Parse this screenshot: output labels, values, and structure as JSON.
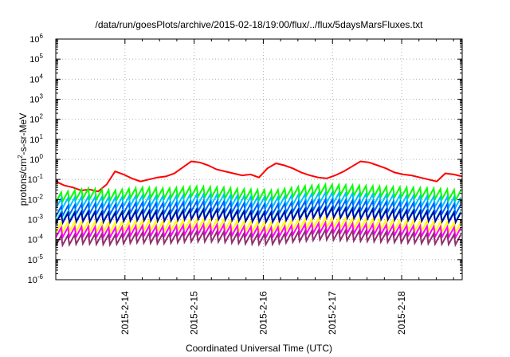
{
  "chart_data": {
    "type": "line",
    "title": "/data/run/goesPlots/archive/2015-02-18/19:00/flux/../flux/5daysMarsFluxes.txt",
    "xlabel": "Coordinated Universal Time (UTC)",
    "ylabel": {
      "base": "protons/cm",
      "sup": "2",
      "rest": "-s-sr-MeV"
    },
    "y_scale": "log",
    "ylim_exp": [
      -6,
      6
    ],
    "xlim": [
      "2015-02-13 00:00",
      "2015-02-18 21:00"
    ],
    "x_ticks": [
      "2015-2-14",
      "2015-2-15",
      "2015-2-16",
      "2015-2-17",
      "2015-2-18"
    ],
    "y_ticks": [
      {
        "base": "10",
        "exp": "-6"
      },
      {
        "base": "10",
        "exp": "-5"
      },
      {
        "base": "10",
        "exp": "-4"
      },
      {
        "base": "10",
        "exp": "-3"
      },
      {
        "base": "10",
        "exp": "-2"
      },
      {
        "base": "10",
        "exp": "-1"
      },
      {
        "base": "10",
        "exp": "0"
      },
      {
        "base": "10",
        "exp": "1"
      },
      {
        "base": "10",
        "exp": "2"
      },
      {
        "base": "10",
        "exp": "3"
      },
      {
        "base": "10",
        "exp": "4"
      },
      {
        "base": "10",
        "exp": "5"
      },
      {
        "base": "10",
        "exp": "6"
      }
    ],
    "grid": true,
    "series": [
      {
        "color": "#ff0000",
        "values_log10": [
          -1.1,
          -1.3,
          -1.4,
          -1.55,
          -1.5,
          -1.6,
          -1.25,
          -0.6,
          -0.75,
          -0.95,
          -1.1,
          -1.0,
          -0.9,
          -0.85,
          -0.7,
          -0.4,
          -0.1,
          -0.15,
          -0.3,
          -0.5,
          -0.6,
          -0.7,
          -0.8,
          -0.75,
          -0.9,
          -0.45,
          -0.2,
          -0.3,
          -0.45,
          -0.65,
          -0.8,
          -0.9,
          -0.95,
          -0.8,
          -0.6,
          -0.35,
          -0.1,
          -0.15,
          -0.3,
          -0.45,
          -0.65,
          -0.75,
          -0.8,
          -0.9,
          -1.0,
          -1.1,
          -0.7,
          -0.75,
          -0.85
        ]
      },
      {
        "color": "#00ff00",
        "values_log10": [
          -1.9,
          -1.7,
          -1.8,
          -1.65,
          -1.7,
          -1.6,
          -1.65,
          -1.75,
          -1.8,
          -1.6,
          -1.5,
          -1.55,
          -1.6,
          -1.65,
          -1.7,
          -1.8
        ]
      },
      {
        "color": "#00c0ff",
        "values_log10": [
          -2.2,
          -2.1,
          -2.15,
          -2.05,
          -2.1,
          -2.0,
          -2.0,
          -2.1,
          -2.15,
          -2.0,
          -1.9,
          -1.95,
          -2.0,
          -2.05,
          -2.1,
          -2.15
        ]
      },
      {
        "color": "#0060ff",
        "values_log10": [
          -2.6,
          -2.45,
          -2.5,
          -2.4,
          -2.45,
          -2.35,
          -2.35,
          -2.45,
          -2.5,
          -2.35,
          -2.25,
          -2.3,
          -2.35,
          -2.4,
          -2.45,
          -2.5
        ]
      },
      {
        "color": "#00ffc0",
        "values_log10": [
          -2.85,
          -2.8,
          -2.85,
          -2.75,
          -2.8,
          -2.7,
          -2.7,
          -2.8,
          -2.85,
          -2.7,
          -2.6,
          -2.65,
          -2.7,
          -2.75,
          -2.8,
          -2.85
        ]
      },
      {
        "color": "#0000b0",
        "values_log10": [
          -2.95,
          -2.85,
          -2.9,
          -2.8,
          -2.85,
          -2.75,
          -2.75,
          -2.85,
          -2.9,
          -2.75,
          -2.65,
          -2.7,
          -2.75,
          -2.8,
          -2.85,
          -2.9
        ]
      },
      {
        "color": "#ffff00",
        "values_log10": [
          -3.4,
          -3.35,
          -3.4,
          -3.3,
          -3.35,
          -3.25,
          -3.25,
          -3.35,
          -3.4,
          -3.25,
          -3.15,
          -3.2,
          -3.25,
          -3.3,
          -3.35,
          -3.4
        ]
      },
      {
        "color": "#ff00ff",
        "values_log10": [
          -3.65,
          -3.6,
          -3.65,
          -3.55,
          -3.6,
          -3.5,
          -3.5,
          -3.6,
          -3.65,
          -3.5,
          -3.4,
          -3.45,
          -3.5,
          -3.55,
          -3.6,
          -3.65
        ]
      },
      {
        "color": "#903070",
        "values_log10": [
          -4.05,
          -3.95,
          -4.0,
          -3.9,
          -3.95,
          -3.85,
          -3.85,
          -3.95,
          -4.0,
          -3.85,
          -3.75,
          -3.8,
          -3.85,
          -3.9,
          -3.95,
          -4.0
        ]
      }
    ]
  }
}
